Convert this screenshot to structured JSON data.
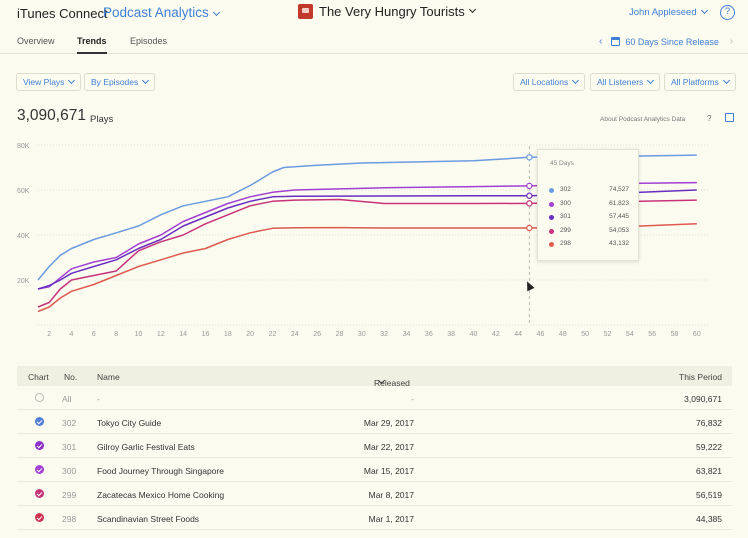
{
  "header": {
    "brand": "iTunes Connect",
    "section": "Podcast Analytics",
    "podcast": "The Very Hungry Tourists",
    "user": "John Appleseed",
    "help": "?"
  },
  "tabs": [
    "Overview",
    "Trends",
    "Episodes"
  ],
  "active_tab": "Trends",
  "date_range": "60 Days Since Release",
  "filters": {
    "left": [
      "View Plays",
      "By Episodes"
    ],
    "right": [
      "All Locations",
      "All Listeners",
      "All Platforms"
    ]
  },
  "summary": {
    "total": "3,090,671",
    "unit": "Plays",
    "about": "About Podcast Analytics Data",
    "about_help": "?"
  },
  "chart_data": {
    "type": "line",
    "xlabel": "",
    "ylabel": "",
    "x_ticks": [
      2,
      4,
      6,
      8,
      10,
      12,
      14,
      16,
      18,
      20,
      22,
      24,
      26,
      28,
      30,
      32,
      34,
      36,
      38,
      40,
      42,
      44,
      46,
      48,
      50,
      52,
      54,
      56,
      58,
      60
    ],
    "y_ticks": [
      {
        "value": 20000,
        "label": "20K"
      },
      {
        "value": 40000,
        "label": "40K"
      },
      {
        "value": 60000,
        "label": "60K"
      },
      {
        "value": 80000,
        "label": "80K"
      }
    ],
    "xlim": [
      1,
      61
    ],
    "ylim": [
      0,
      84000
    ],
    "grid": "horizontal dotted",
    "series": [
      {
        "episode": "302",
        "color": "#6b9be0",
        "x": [
          1,
          2,
          3,
          4,
          6,
          8,
          10,
          12,
          14,
          16,
          18,
          20,
          22,
          23,
          26,
          30,
          40,
          45,
          50,
          55,
          60
        ],
        "y": [
          20000,
          26000,
          31000,
          34000,
          38000,
          41000,
          44000,
          49000,
          53000,
          55000,
          57000,
          62000,
          68000,
          70000,
          71000,
          72000,
          73000,
          74527,
          74800,
          75100,
          75500
        ]
      },
      {
        "episode": "300",
        "color": "#a23fd4",
        "x": [
          1,
          2,
          3,
          4,
          6,
          8,
          10,
          12,
          14,
          16,
          18,
          20,
          22,
          24,
          28,
          32,
          40,
          45,
          50,
          55,
          60
        ],
        "y": [
          16000,
          17000,
          21000,
          25000,
          28000,
          30000,
          36000,
          40000,
          46000,
          50000,
          54000,
          57000,
          59000,
          60000,
          60500,
          61000,
          61500,
          61823,
          62500,
          63000,
          63300
        ]
      },
      {
        "episode": "301",
        "color": "#6a2dc2",
        "x": [
          1,
          2,
          3,
          4,
          6,
          8,
          10,
          12,
          14,
          16,
          18,
          20,
          22,
          24,
          28,
          32,
          40,
          45,
          50,
          55,
          60
        ],
        "y": [
          16000,
          17500,
          20000,
          23000,
          26000,
          29000,
          34000,
          38000,
          44000,
          48000,
          52000,
          55000,
          57000,
          57200,
          57300,
          57350,
          57400,
          57445,
          58000,
          59000,
          60000
        ]
      },
      {
        "episode": "299",
        "color": "#c7337a",
        "x": [
          1,
          2,
          3,
          4,
          6,
          8,
          10,
          12,
          14,
          16,
          18,
          20,
          22,
          24,
          28,
          32,
          40,
          45,
          50,
          55,
          60
        ],
        "y": [
          8000,
          10000,
          16000,
          20000,
          22000,
          24000,
          33000,
          37000,
          40000,
          45000,
          49000,
          53000,
          55000,
          55500,
          55800,
          54000,
          54000,
          54053,
          54500,
          55000,
          55500
        ]
      },
      {
        "episode": "298",
        "color": "#de5a4e",
        "x": [
          1,
          2,
          3,
          4,
          6,
          8,
          10,
          12,
          14,
          16,
          18,
          20,
          22,
          24,
          28,
          32,
          40,
          45,
          50,
          55,
          60
        ],
        "y": [
          6000,
          8000,
          12000,
          15000,
          18000,
          22000,
          26000,
          29000,
          32000,
          34000,
          38000,
          41000,
          43000,
          43200,
          43300,
          43100,
          43100,
          43132,
          43500,
          44000,
          45000
        ]
      }
    ],
    "hover_x": 45
  },
  "tooltip": {
    "title": "45 Days",
    "rows": [
      {
        "episode": "302",
        "value": "74,527",
        "color": "#6b9be0"
      },
      {
        "episode": "300",
        "value": "61,823",
        "color": "#a23fd4"
      },
      {
        "episode": "301",
        "value": "57,445",
        "color": "#6a2dc2"
      },
      {
        "episode": "299",
        "value": "54,053",
        "color": "#c7337a"
      },
      {
        "episode": "298",
        "value": "43,132",
        "color": "#de5a4e"
      }
    ]
  },
  "table": {
    "headers": {
      "chart": "Chart",
      "no": "No.",
      "name": "Name",
      "released": "Released",
      "period": "This Period"
    },
    "rows": [
      {
        "checked": false,
        "color": "#bbbbbb",
        "no": "All",
        "name": "-",
        "released": "-",
        "period": "3,090,671"
      },
      {
        "checked": true,
        "color": "#4f7fd9",
        "no": "302",
        "name": "Tokyo City Guide",
        "released": "Mar 29, 2017",
        "period": "76,832"
      },
      {
        "checked": true,
        "color": "#8e2fc9",
        "no": "301",
        "name": "Gilroy Garlic Festival Eats",
        "released": "Mar 22, 2017",
        "period": "59,222"
      },
      {
        "checked": true,
        "color": "#a23fd4",
        "no": "300",
        "name": "Food Journey Through Singapore",
        "released": "Mar 15, 2017",
        "period": "63,821"
      },
      {
        "checked": true,
        "color": "#c7337a",
        "no": "299",
        "name": "Zacatecas Mexico Home Cooking",
        "released": "Mar 8, 2017",
        "period": "56,519"
      },
      {
        "checked": true,
        "color": "#cf3151",
        "no": "298",
        "name": "Scandinavian Street Foods",
        "released": "Mar 1, 2017",
        "period": "44,385"
      }
    ]
  }
}
